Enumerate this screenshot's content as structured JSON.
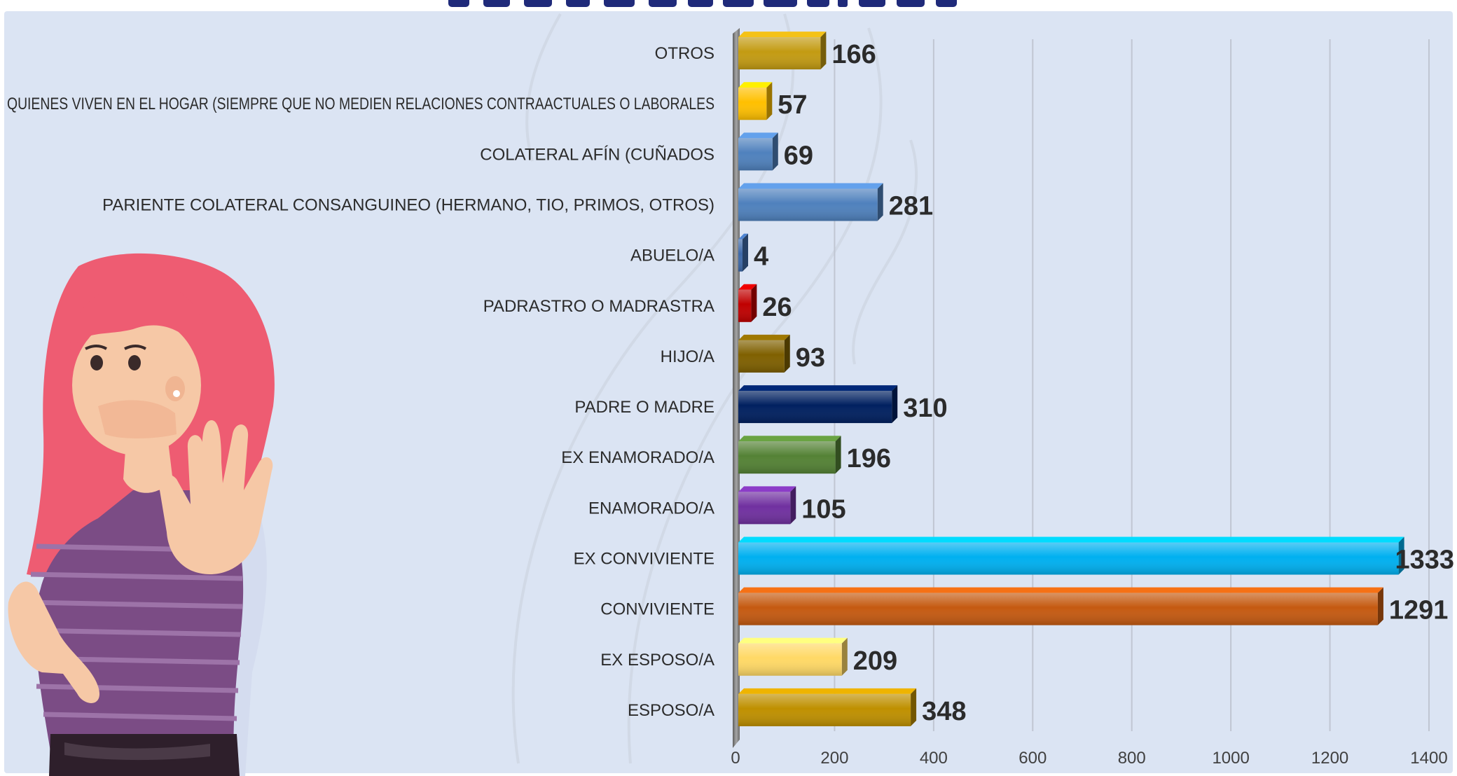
{
  "chart_data": {
    "type": "bar",
    "orientation": "horizontal",
    "title": "",
    "xlabel": "",
    "ylabel": "",
    "xlim": [
      0,
      1400
    ],
    "x_ticks": [
      0,
      200,
      400,
      600,
      800,
      1000,
      1200,
      1400
    ],
    "grid": "vertical gridlines",
    "categories": [
      "OTROS",
      "QUIENES VIVEN EN EL HOGAR (SIEMPRE QUE NO MEDIEN RELACIONES CONTRAACTUALES O LABORALES",
      "COLATERAL AFÍN (CUÑADOS",
      "PARIENTE COLATERAL CONSANGUINEO (HERMANO, TIO, PRIMOS, OTROS)",
      "ABUELO/A",
      "PADRASTRO O MADRASTRA",
      "HIJO/A",
      "PADRE O MADRE",
      "EX ENAMORADO/A",
      "ENAMORADO/A",
      "EX CONVIVIENTE",
      "CONVIVIENTE",
      "EX ESPOSO/A",
      "ESPOSO/A"
    ],
    "values": [
      166,
      57,
      69,
      281,
      4,
      26,
      93,
      310,
      196,
      105,
      1333,
      1291,
      209,
      348
    ],
    "bar_colors": [
      "#c39b12",
      "#ffc000",
      "#4f81bd",
      "#4f81bd",
      "#3f6aa9",
      "#c00000",
      "#7f6000",
      "#002060",
      "#548235",
      "#7030a0",
      "#00b0f0",
      "#c55a11",
      "#ffd966",
      "#bf9000"
    ]
  },
  "colors": {
    "panel_background": "#dbe4f3",
    "title_text": "#1f2a7a",
    "axis_wall": "#7f7f7f",
    "gridline": "#c0c6d2"
  },
  "illustration": {
    "subject": "woman with pink hair covering mouth and raising hand in stop gesture"
  }
}
